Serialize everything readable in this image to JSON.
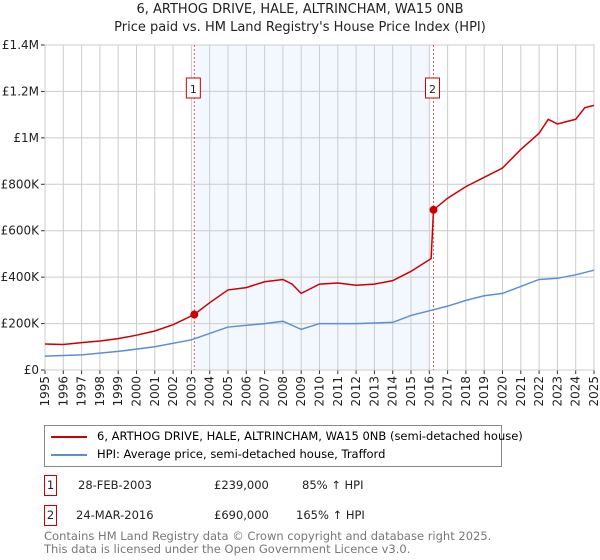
{
  "chart_data": {
    "type": "line",
    "title": "6, ARTHOG DRIVE, HALE, ALTRINCHAM, WA15 0NB",
    "subtitle": "Price paid vs. HM Land Registry's House Price Index (HPI)",
    "xlim": [
      1995,
      2025
    ],
    "ylim": [
      0,
      1400000
    ],
    "x_ticks": [
      "1995",
      "1996",
      "1997",
      "1998",
      "1999",
      "2000",
      "2001",
      "2002",
      "2003",
      "2004",
      "2005",
      "2006",
      "2007",
      "2008",
      "2009",
      "2010",
      "2011",
      "2012",
      "2013",
      "2014",
      "2015",
      "2016",
      "2017",
      "2018",
      "2019",
      "2020",
      "2021",
      "2022",
      "2023",
      "2024",
      "2025"
    ],
    "y_ticks": [
      {
        "v": 0,
        "label": "£0"
      },
      {
        "v": 200000,
        "label": "£200K"
      },
      {
        "v": 400000,
        "label": "£400K"
      },
      {
        "v": 600000,
        "label": "£600K"
      },
      {
        "v": 800000,
        "label": "£800K"
      },
      {
        "v": 1000000,
        "label": "£1M"
      },
      {
        "v": 1200000,
        "label": "£1.2M"
      },
      {
        "v": 1400000,
        "label": "£1.4M"
      }
    ],
    "grid": true,
    "series": [
      {
        "name": "6, ARTHOG DRIVE, HALE, ALTRINCHAM, WA15 0NB (semi-detached house)",
        "color": "#cc0000",
        "x": [
          1995,
          1996,
          1997,
          1998,
          1999,
          2000,
          2001,
          2002,
          2003.16,
          2004,
          2005,
          2006,
          2007,
          2008,
          2008.5,
          2009,
          2009.5,
          2010,
          2011,
          2012,
          2013,
          2014,
          2015,
          2016.1,
          2016.23,
          2017,
          2018,
          2019,
          2019.5,
          2020,
          2021,
          2022,
          2022.5,
          2023,
          2024,
          2024.5,
          2025
        ],
        "y": [
          112000,
          110000,
          118000,
          125000,
          135000,
          150000,
          168000,
          195000,
          239000,
          290000,
          345000,
          355000,
          380000,
          390000,
          370000,
          330000,
          350000,
          370000,
          375000,
          365000,
          370000,
          385000,
          425000,
          480000,
          690000,
          740000,
          790000,
          830000,
          850000,
          870000,
          950000,
          1020000,
          1080000,
          1060000,
          1080000,
          1130000,
          1140000
        ]
      },
      {
        "name": "HPI: Average price, semi-detached house, Trafford",
        "color": "#5b8fd4",
        "x": [
          1995,
          1997,
          1999,
          2001,
          2003,
          2005,
          2007,
          2008,
          2009,
          2010,
          2012,
          2014,
          2015,
          2016,
          2017,
          2018,
          2019,
          2020,
          2021,
          2022,
          2023,
          2024,
          2025
        ],
        "y": [
          60000,
          65000,
          80000,
          100000,
          130000,
          185000,
          200000,
          210000,
          175000,
          200000,
          200000,
          205000,
          235000,
          255000,
          275000,
          300000,
          320000,
          330000,
          360000,
          390000,
          395000,
          410000,
          430000
        ]
      }
    ],
    "sales": [
      {
        "id": "1",
        "x": 2003.16,
        "y": 239000,
        "date": "28-FEB-2003",
        "price": "£239,000",
        "hpi": "85% ↑ HPI"
      },
      {
        "id": "2",
        "x": 2016.23,
        "y": 690000,
        "date": "24-MAR-2016",
        "price": "£690,000",
        "hpi": "165% ↑ HPI"
      }
    ]
  },
  "footer": {
    "line1": "Contains HM Land Registry data © Crown copyright and database right 2025.",
    "line2": "This data is licensed under the Open Government Licence v3.0."
  }
}
